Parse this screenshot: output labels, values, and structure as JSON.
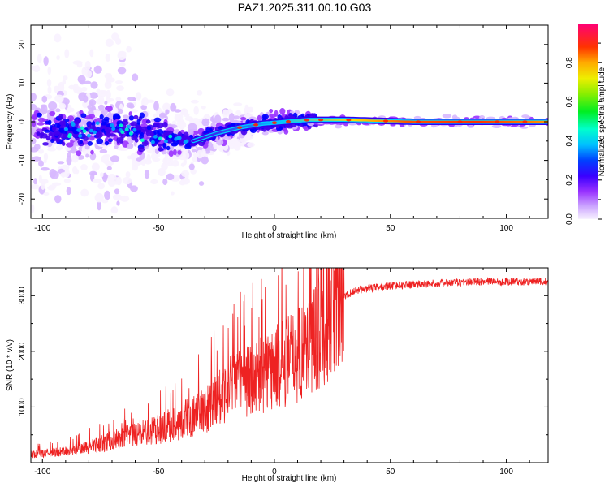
{
  "figure_title": "PAZ1.2025.311.00.10.G03",
  "colors": {
    "snr_line": "#ee2222",
    "colormap": [
      "#f8f2ff",
      "#d7b8ff",
      "#9a33ff",
      "#4400ee",
      "#0000ff",
      "#00aaff",
      "#00ffcc",
      "#00ee00",
      "#cccc00",
      "#ff8800",
      "#ff2200",
      "#ff0066"
    ]
  },
  "chart_data": [
    {
      "type": "heatmap",
      "name": "spectrogram",
      "title": "",
      "xlabel": "Height of straight line (km)",
      "ylabel": "Frequency (Hz)",
      "xlim": [
        -105,
        118
      ],
      "ylim": [
        -25,
        25
      ],
      "xticks": [
        -100,
        -50,
        0,
        50,
        100
      ],
      "yticks": [
        20,
        10,
        0,
        -10,
        -20
      ],
      "colorbar": {
        "label": "Normalized spectral amplitude",
        "range": [
          0,
          1
        ],
        "ticks": [
          "0.0",
          "0.2",
          "0.4",
          "0.6",
          "0.8"
        ]
      },
      "ridge_frequency_hz": [
        {
          "x": -100,
          "y": -2
        },
        {
          "x": -80,
          "y": -2
        },
        {
          "x": -60,
          "y": -2
        },
        {
          "x": -45,
          "y": -4
        },
        {
          "x": -35,
          "y": -5
        },
        {
          "x": -25,
          "y": -3
        },
        {
          "x": -15,
          "y": -1.5
        },
        {
          "x": -5,
          "y": -0.5
        },
        {
          "x": 5,
          "y": 0
        },
        {
          "x": 15,
          "y": 0.5
        },
        {
          "x": 30,
          "y": 0.5
        },
        {
          "x": 60,
          "y": 0
        },
        {
          "x": 90,
          "y": 0
        },
        {
          "x": 118,
          "y": 0
        }
      ]
    },
    {
      "type": "line",
      "name": "snr",
      "title": "",
      "xlabel": "Height of straight line (km)",
      "ylabel": "SNR (10 * v/v)",
      "xlim": [
        -105,
        118
      ],
      "ylim": [
        0,
        3500
      ],
      "xticks": [
        -100,
        -50,
        0,
        50,
        100
      ],
      "yticks": [
        1000,
        2000,
        3000
      ],
      "trend": [
        {
          "x": -105,
          "y": 150
        },
        {
          "x": -90,
          "y": 200
        },
        {
          "x": -80,
          "y": 280
        },
        {
          "x": -70,
          "y": 400
        },
        {
          "x": -60,
          "y": 500
        },
        {
          "x": -50,
          "y": 600
        },
        {
          "x": -40,
          "y": 750
        },
        {
          "x": -30,
          "y": 950
        },
        {
          "x": -25,
          "y": 1150
        },
        {
          "x": -20,
          "y": 1350
        },
        {
          "x": -10,
          "y": 1500
        },
        {
          "x": 0,
          "y": 1700
        },
        {
          "x": 10,
          "y": 1950
        },
        {
          "x": 20,
          "y": 2400
        },
        {
          "x": 27,
          "y": 2900
        },
        {
          "x": 35,
          "y": 3100
        },
        {
          "x": 50,
          "y": 3180
        },
        {
          "x": 70,
          "y": 3220
        },
        {
          "x": 90,
          "y": 3260
        },
        {
          "x": 118,
          "y": 3250
        }
      ]
    }
  ]
}
